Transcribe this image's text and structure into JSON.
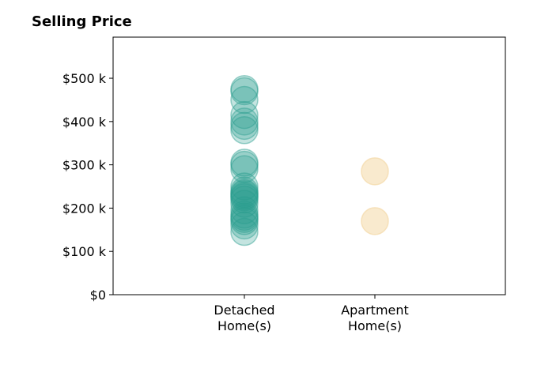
{
  "chart_data": {
    "type": "scatter",
    "title": "Selling Price",
    "xlabel": "",
    "ylabel": "",
    "categories": [
      "Detached\nHome(s)",
      "Apartment\nHome(s)"
    ],
    "ylim": [
      0,
      595000
    ],
    "yticks": [
      {
        "value": 0,
        "label": "$0"
      },
      {
        "value": 100000,
        "label": "$100 k"
      },
      {
        "value": 200000,
        "label": "$200 k"
      },
      {
        "value": 300000,
        "label": "$300 k"
      },
      {
        "value": 400000,
        "label": "$400 k"
      },
      {
        "value": 500000,
        "label": "$500 k"
      }
    ],
    "grid": false,
    "series": [
      {
        "category": "Detached\nHome(s)",
        "color": "#2a9d8f",
        "values": [
          475000,
          470000,
          450000,
          415000,
          400000,
          390000,
          380000,
          305000,
          300000,
          290000,
          250000,
          240000,
          235000,
          232000,
          228000,
          225000,
          220000,
          210000,
          195000,
          185000,
          180000,
          175000,
          170000,
          160000,
          145000
        ]
      },
      {
        "category": "Apartment\nHome(s)",
        "color": "#f4d9a6",
        "values": [
          285000,
          170000
        ]
      }
    ]
  }
}
